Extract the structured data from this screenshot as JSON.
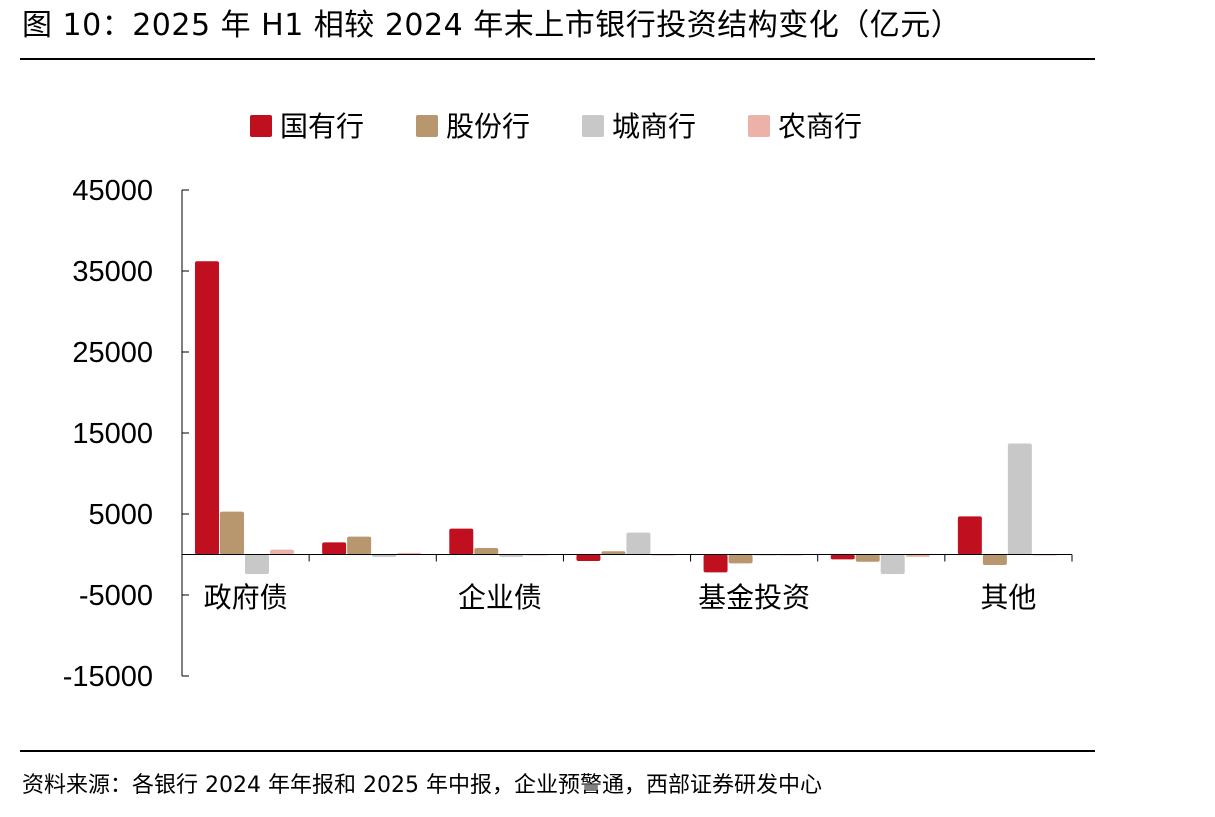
{
  "title": "图 10：2025 年 H1 相较 2024 年末上市银行投资结构变化（亿元）",
  "source": "资料来源：各银行 2024 年年报和 2025 年中报，企业预警通，西部证券研发中心",
  "chart_data": {
    "type": "bar",
    "categories": [
      "政府债",
      "",
      "企业债",
      "",
      "基金投资",
      "",
      "其他"
    ],
    "series": [
      {
        "name": "国有行",
        "color": "#C00F1E",
        "values": [
          36200,
          1500,
          3200,
          -800,
          -2200,
          -600,
          4700
        ]
      },
      {
        "name": "股份行",
        "color": "#B8966E",
        "values": [
          5300,
          2200,
          800,
          400,
          -1100,
          -900,
          -1300
        ]
      },
      {
        "name": "城商行",
        "color": "#C8C8C8",
        "values": [
          -2400,
          -300,
          -300,
          2700,
          -100,
          -2400,
          13700
        ]
      },
      {
        "name": "农商行",
        "color": "#ECB2A8",
        "values": [
          600,
          200,
          -100,
          -100,
          -100,
          -300,
          -100
        ]
      }
    ],
    "ylim": [
      -15000,
      45000
    ],
    "yticks": [
      45000,
      35000,
      25000,
      15000,
      5000,
      -5000,
      -15000
    ],
    "legend_position": "top",
    "grid": false
  }
}
